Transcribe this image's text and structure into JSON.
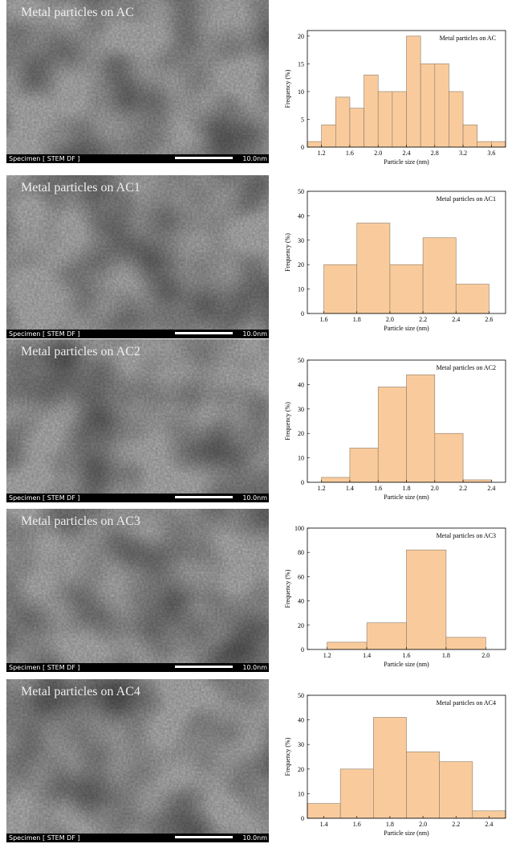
{
  "images": [
    {
      "title": "Metal particles on AC",
      "specimen": "Specimen [ STEM DF ]",
      "scale": "10.0nm"
    },
    {
      "title": "Metal particles on AC1",
      "specimen": "Specimen [ STEM DF ]",
      "scale": "10.0nm"
    },
    {
      "title": "Metal particles on AC2",
      "specimen": "Specimen [ STEM DF ]",
      "scale": "10.0nm"
    },
    {
      "title": "Metal particles on AC3",
      "specimen": "Specimen [ STEM DF ]",
      "scale": "10.0nm"
    },
    {
      "title": "Metal particles on AC4",
      "specimen": "Specimen [ STEM DF ]",
      "scale": "10.0nm"
    }
  ],
  "chart_data": [
    {
      "type": "histogram",
      "title": "Metal particles on AC",
      "x_label": "Particle size (nm)",
      "y_label": "Frequency (%)",
      "color": "#f9cb9c",
      "bins": [
        1.0,
        1.2,
        1.4,
        1.6,
        1.8,
        2.0,
        2.2,
        2.4,
        2.6,
        2.8,
        3.0,
        3.2,
        3.4,
        3.6,
        3.8
      ],
      "values": [
        1,
        4,
        9,
        7,
        13,
        10,
        10,
        20,
        15,
        15,
        10,
        4,
        1,
        1
      ],
      "xlim": [
        1.0,
        3.8
      ],
      "xticks": [
        1.2,
        1.6,
        {
          "value": 2,
          "label": "2.0"
        },
        2.4,
        2.8,
        3.2,
        3.6
      ],
      "ylim": [
        0,
        21
      ],
      "yticks": [
        0,
        5,
        10,
        15,
        20
      ]
    },
    {
      "type": "histogram",
      "title": "Metal particles on AC1",
      "x_label": "Particle size (nm)",
      "y_label": "Frequency (%)",
      "color": "#f9cb9c",
      "bins": [
        1.6,
        1.8,
        2.0,
        2.2,
        2.4,
        2.6
      ],
      "values": [
        20,
        37,
        20,
        31,
        12
      ],
      "xlim": [
        1.5,
        2.7
      ],
      "xticks": [
        1.6,
        1.8,
        {
          "value": 2,
          "label": "2.0"
        },
        2.2,
        2.4,
        2.6
      ],
      "ylim": [
        0,
        50
      ],
      "yticks": [
        0,
        10,
        20,
        30,
        40,
        50
      ]
    },
    {
      "type": "histogram",
      "title": "Metal particles on AC2",
      "x_label": "Particle size (nm)",
      "y_label": "Frequency (%)",
      "color": "#f9cb9c",
      "bins": [
        1.2,
        1.4,
        1.6,
        1.8,
        2.0,
        2.2,
        2.4
      ],
      "values": [
        2,
        14,
        39,
        44,
        20,
        1
      ],
      "xlim": [
        1.1,
        2.5
      ],
      "xticks": [
        1.2,
        1.4,
        1.6,
        1.8,
        {
          "value": 2,
          "label": "2.0"
        },
        2.2,
        2.4
      ],
      "ylim": [
        0,
        50
      ],
      "yticks": [
        0,
        10,
        20,
        30,
        40,
        50
      ]
    },
    {
      "type": "histogram",
      "title": "Metal particles on AC3",
      "x_label": "Particle size (nm)",
      "y_label": "Frequency (%)",
      "color": "#f9cb9c",
      "bins": [
        1.2,
        1.4,
        1.6,
        1.8,
        2.0
      ],
      "values": [
        6,
        22,
        82,
        10
      ],
      "xlim": [
        1.1,
        2.1
      ],
      "xticks": [
        1.2,
        1.4,
        1.6,
        1.8,
        {
          "value": 2,
          "label": "2.0"
        }
      ],
      "ylim": [
        0,
        100
      ],
      "yticks": [
        0,
        20,
        40,
        60,
        80,
        100
      ]
    },
    {
      "type": "histogram",
      "title": "Metal particles on AC4",
      "x_label": "Particle size (nm)",
      "y_label": "Frequency (%)",
      "color": "#f9cb9c",
      "bins": [
        1.3,
        1.5,
        1.7,
        1.9,
        2.1,
        2.3,
        2.5
      ],
      "values": [
        6,
        20,
        41,
        27,
        23,
        3
      ],
      "xlim": [
        1.3,
        2.5
      ],
      "xticks": [
        1.4,
        1.6,
        1.8,
        {
          "value": 2,
          "label": "2.0"
        },
        2.2,
        2.4
      ],
      "ylim": [
        0,
        50
      ],
      "yticks": [
        0,
        10,
        20,
        30,
        40,
        50
      ]
    }
  ]
}
